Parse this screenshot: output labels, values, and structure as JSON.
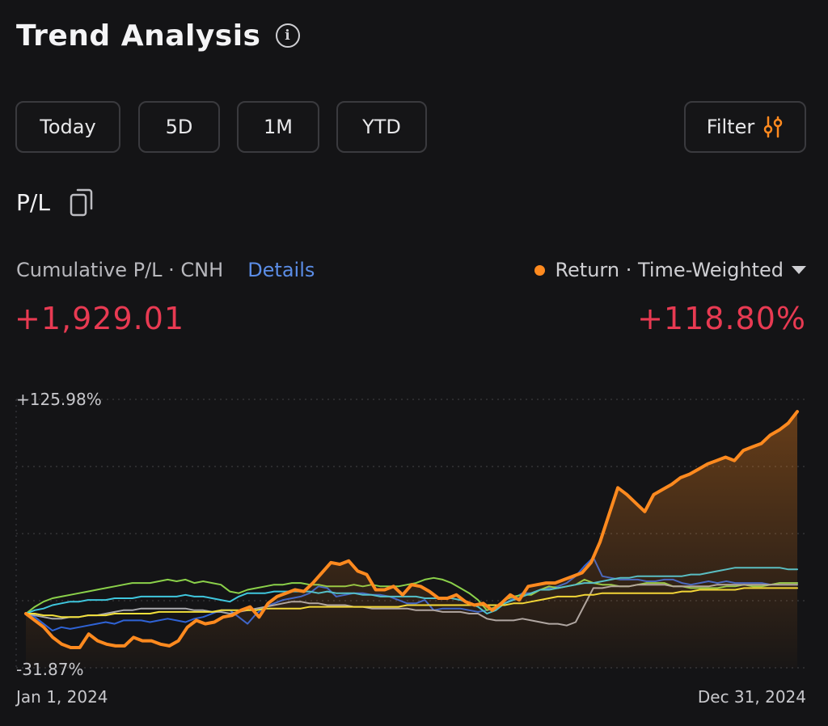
{
  "header": {
    "title": "Trend Analysis",
    "info_icon": "info-icon"
  },
  "periods": [
    {
      "label": "Today"
    },
    {
      "label": "5D"
    },
    {
      "label": "1M"
    },
    {
      "label": "YTD"
    }
  ],
  "filter": {
    "label": "Filter",
    "icon": "sliders-icon",
    "icon_color": "#ff8a1f"
  },
  "pl_section": {
    "label": "P/L",
    "icon": "copy-icon"
  },
  "metric": {
    "label": "Cumulative P/L · CNH",
    "details_label": "Details",
    "selector_label": "Return · Time-Weighted",
    "cumulative_value": "+1,929.01",
    "return_value": "+118.80%"
  },
  "colors": {
    "accent": "#ff8a1f",
    "positive": "#e83a52",
    "link": "#5b8de6",
    "background": "#141416"
  },
  "chart_data": {
    "type": "line",
    "ylim": [
      -31.87,
      125.98
    ],
    "ymax_label": "+125.98%",
    "ymin_label": "-31.87%",
    "x_start_label": "Jan 1, 2024",
    "x_end_label": "Dec 31, 2024",
    "grid": true,
    "series": [
      {
        "color": "#ff8a1f",
        "highlighted": true,
        "values": [
          0,
          -4,
          -8,
          -14,
          -18,
          -20,
          -20,
          -12,
          -16,
          -18,
          -19,
          -19,
          -14,
          -16,
          -16,
          -18,
          -19,
          -16,
          -8,
          -4,
          -6,
          -5,
          -2,
          -1,
          2,
          4,
          -2,
          6,
          10,
          12,
          14,
          13,
          18,
          24,
          30,
          29,
          31,
          25,
          23,
          14,
          14,
          16,
          11,
          17,
          16,
          13,
          9,
          9,
          11,
          7,
          5,
          6,
          2,
          6,
          11,
          8,
          16,
          17,
          18,
          18,
          20,
          22,
          24,
          30,
          42,
          58,
          74,
          70,
          65,
          60,
          70,
          73,
          76,
          80,
          82,
          85,
          88,
          90,
          92,
          90,
          96,
          98,
          100,
          105,
          108,
          112,
          118.8
        ]
      },
      {
        "color": "#2f63d6",
        "values": [
          0,
          -2,
          -6,
          -10,
          -8,
          -9,
          -8,
          -7,
          -6,
          -5,
          -6,
          -4,
          -4,
          -4,
          -5,
          -4,
          -3,
          -4,
          -5,
          -3,
          -2,
          0,
          2,
          2,
          -2,
          -6,
          0,
          4,
          6,
          8,
          9,
          10,
          12,
          16,
          15,
          10,
          11,
          12,
          12,
          11,
          11,
          10,
          8,
          6,
          6,
          8,
          2,
          3,
          3,
          3,
          2,
          1,
          2,
          3,
          6,
          9,
          12,
          12,
          14,
          15,
          16,
          18,
          22,
          28,
          33,
          22,
          21,
          20,
          20,
          20,
          19,
          19,
          20,
          20,
          18,
          17,
          18,
          19,
          18,
          19,
          18,
          18,
          18,
          18,
          17,
          18,
          18,
          18
        ]
      },
      {
        "color": "#8bd14a",
        "values": [
          0,
          4,
          7,
          9,
          10,
          11,
          12,
          13,
          14,
          15,
          16,
          17,
          18,
          18,
          18,
          19,
          20,
          19,
          20,
          18,
          19,
          18,
          17,
          13,
          12,
          14,
          15,
          16,
          17,
          17,
          18,
          18,
          17,
          17,
          16,
          16,
          16,
          17,
          16,
          17,
          16,
          16,
          16,
          17,
          18,
          20,
          21,
          20,
          18,
          15,
          12,
          8,
          2,
          4,
          8,
          10,
          11,
          11,
          14,
          16,
          15,
          16,
          17,
          20,
          18,
          17,
          17,
          16,
          16,
          17,
          18,
          18,
          18,
          16,
          16,
          15,
          15,
          15,
          15,
          16,
          16,
          17,
          16,
          16,
          17,
          18,
          18,
          18
        ]
      },
      {
        "color": "#3fc7de",
        "values": [
          0,
          2,
          3,
          5,
          6,
          7,
          7,
          8,
          8,
          8,
          9,
          9,
          9,
          10,
          10,
          10,
          10,
          10,
          11,
          10,
          10,
          9,
          8,
          7,
          10,
          12,
          12,
          12,
          13,
          13,
          13,
          13,
          13,
          12,
          13,
          12,
          12,
          12,
          11,
          11,
          10,
          10,
          10,
          10,
          10,
          9,
          9,
          9,
          9,
          8,
          6,
          4,
          0,
          2,
          6,
          8,
          10,
          12,
          14,
          14,
          15,
          16,
          17,
          18,
          18,
          19,
          20,
          21,
          21,
          22,
          22,
          22,
          22,
          22,
          22,
          23,
          23,
          24,
          25,
          26,
          27,
          27,
          27,
          27,
          27,
          27,
          26,
          26
        ]
      },
      {
        "color": "#a9a9ad",
        "values": [
          0,
          -1,
          -2,
          -3,
          -3,
          -2,
          -2,
          -1,
          -1,
          0,
          1,
          2,
          2,
          3,
          3,
          3,
          3,
          3,
          3,
          2,
          2,
          1,
          1,
          0,
          1,
          2,
          3,
          4,
          5,
          6,
          7,
          7,
          6,
          6,
          5,
          5,
          5,
          4,
          4,
          3,
          3,
          3,
          3,
          3,
          2,
          2,
          2,
          1,
          1,
          1,
          0,
          0,
          -3,
          -4,
          -4,
          -4,
          -3,
          -4,
          -5,
          -6,
          -6,
          -7,
          -5,
          5,
          15,
          15,
          16,
          16,
          16,
          17,
          17,
          17,
          17,
          16,
          16,
          16,
          16,
          16,
          17,
          17,
          17,
          17,
          17,
          17,
          17,
          17,
          17,
          17
        ]
      },
      {
        "color": "#f2e03a",
        "values": [
          0,
          0,
          -1,
          -1,
          -2,
          -2,
          -2,
          -1,
          -1,
          -1,
          0,
          0,
          0,
          0,
          0,
          1,
          1,
          1,
          1,
          1,
          1,
          1,
          2,
          2,
          2,
          2,
          2,
          3,
          3,
          3,
          3,
          3,
          4,
          4,
          4,
          4,
          4,
          4,
          4,
          4,
          4,
          4,
          4,
          5,
          5,
          5,
          5,
          5,
          5,
          5,
          5,
          5,
          5,
          5,
          5,
          6,
          6,
          7,
          8,
          9,
          10,
          10,
          10,
          11,
          11,
          12,
          12,
          12,
          12,
          12,
          12,
          12,
          12,
          12,
          13,
          13,
          14,
          14,
          14,
          14,
          14,
          15,
          15,
          15,
          15,
          15,
          15,
          15
        ]
      }
    ]
  }
}
